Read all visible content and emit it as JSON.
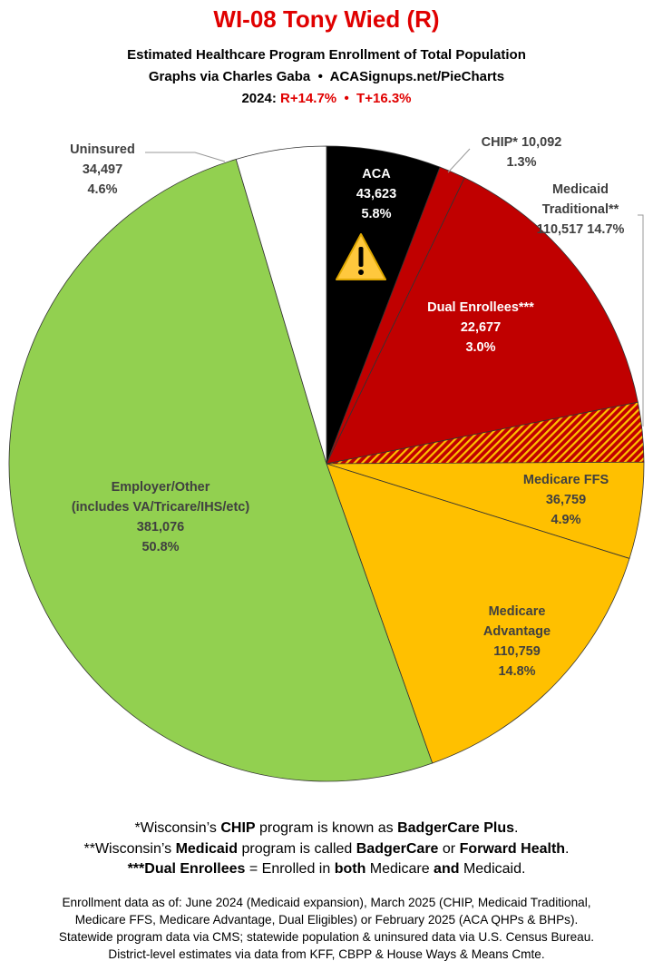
{
  "chart_data": {
    "type": "pie",
    "title": "WI-08 Tony Wied (R)",
    "subtitle": [
      "Estimated Healthcare Program Enrollment of Total Population",
      "Graphs via Charles Gaba  •  ACASignups.net/PieCharts"
    ],
    "year_label": "2024:",
    "margins_label": "R+14.7%  •  T+16.3%",
    "categories": [
      "ACA",
      "CHIP*",
      "Medicaid\nTraditional**",
      "Dual Enrollees***",
      "Medicare FFS",
      "Medicare\nAdvantage",
      "Employer/Other\n(includes VA/Tricare/IHS/etc)",
      "Uninsured"
    ],
    "values": [
      43623,
      10092,
      110517,
      22677,
      36759,
      110759,
      381076,
      34497
    ],
    "value_labels": [
      "43,623",
      "10,092",
      "110,517",
      "22,677",
      "36,759",
      "110,759",
      "381,076",
      "34,497"
    ],
    "percents": [
      5.8,
      1.3,
      14.7,
      3.0,
      4.9,
      14.8,
      50.8,
      4.6
    ],
    "percent_labels": [
      "5.8%",
      "1.3%",
      "14.7%",
      "3.0%",
      "4.9%",
      "14.8%",
      "50.8%",
      "4.6%"
    ],
    "colors": [
      "#000000",
      "#c00000",
      "#c00000",
      "#c00000",
      "#ffc000",
      "#ffc000",
      "#92d050",
      "#ffffff"
    ],
    "hatch": [
      false,
      false,
      false,
      true,
      false,
      false,
      false,
      false
    ],
    "hatch_color": "#ffc000"
  },
  "footnotes": [
    [
      "*Wisconsin’s ",
      "CHIP",
      " program is known as ",
      "BadgerCare Plus",
      "."
    ],
    [
      "**Wisconsin’s ",
      "Medicaid",
      " program is called ",
      "BadgerCare",
      " or ",
      "Forward Health",
      "."
    ],
    [
      "***Dual Enrollees",
      " = Enrolled in ",
      "both",
      " Medicare ",
      "and",
      " Medicaid."
    ]
  ],
  "notes": [
    "Enrollment data as of: June 2024 (Medicaid expansion), March 2025 (CHIP, Medicaid Traditional,",
    "Medicare FFS, Medicare Advantage, Dual Eligibles) or February 2025 (ACA QHPs & BHPs).",
    "Statewide program data via CMS; statewide population & uninsured data via U.S. Census Bureau.",
    "District-level estimates via data from KFF, CBPP & House Ways & Means Cmte."
  ]
}
